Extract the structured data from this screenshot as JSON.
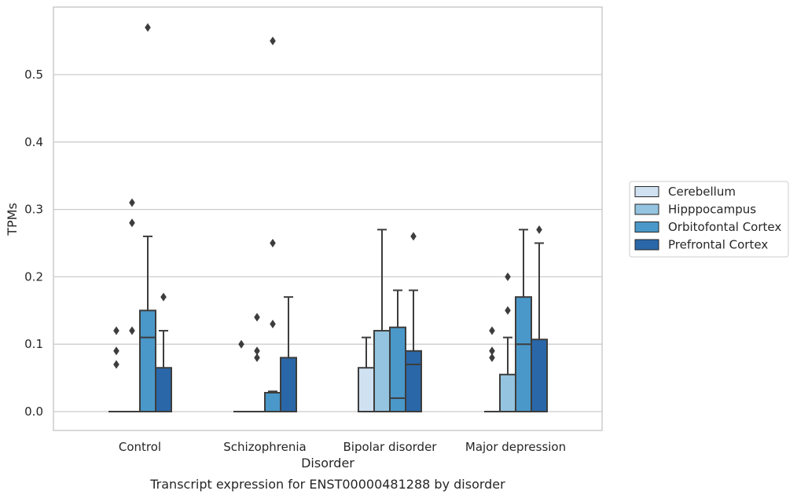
{
  "chart_data": {
    "type": "box",
    "title": "",
    "caption": "Transcript expression for ENST00000481288 by disorder",
    "xlabel": "Disorder",
    "ylabel": "TPMs",
    "ylim": [
      -0.028,
      0.6
    ],
    "yticks": [
      0.0,
      0.1,
      0.2,
      0.3,
      0.4,
      0.5
    ],
    "ytick_labels": [
      "0.0",
      "0.1",
      "0.2",
      "0.3",
      "0.4",
      "0.5"
    ],
    "grid": "horizontal",
    "legend_position": "right",
    "categories": [
      "Control",
      "Schizophrenia",
      "Bipolar disorder",
      "Major depression"
    ],
    "series": [
      {
        "name": "Cerebellum",
        "color": "#d0e1f2",
        "boxes": [
          {
            "q1": 0.0,
            "median": 0.0,
            "q3": 0.0,
            "whisker_low": 0.0,
            "whisker_high": 0.0,
            "outliers": [
              0.12,
              0.09,
              0.07
            ]
          },
          {
            "q1": 0.0,
            "median": 0.0,
            "q3": 0.0,
            "whisker_low": 0.0,
            "whisker_high": 0.0,
            "outliers": [
              0.1
            ]
          },
          {
            "q1": 0.0,
            "median": 0.0,
            "q3": 0.065,
            "whisker_low": 0.0,
            "whisker_high": 0.11,
            "outliers": []
          },
          {
            "q1": 0.0,
            "median": 0.0,
            "q3": 0.0,
            "whisker_low": 0.0,
            "whisker_high": 0.0,
            "outliers": [
              0.12,
              0.09,
              0.08
            ]
          }
        ]
      },
      {
        "name": "Hipppocampus",
        "color": "#94c4df",
        "boxes": [
          {
            "q1": 0.0,
            "median": 0.0,
            "q3": 0.0,
            "whisker_low": 0.0,
            "whisker_high": 0.0,
            "outliers": [
              0.31,
              0.28,
              0.12
            ]
          },
          {
            "q1": 0.0,
            "median": 0.0,
            "q3": 0.0,
            "whisker_low": 0.0,
            "whisker_high": 0.0,
            "outliers": [
              0.14,
              0.09,
              0.08
            ]
          },
          {
            "q1": 0.0,
            "median": 0.0,
            "q3": 0.12,
            "whisker_low": 0.0,
            "whisker_high": 0.27,
            "outliers": []
          },
          {
            "q1": 0.0,
            "median": 0.0,
            "q3": 0.055,
            "whisker_low": 0.0,
            "whisker_high": 0.11,
            "outliers": [
              0.2,
              0.15
            ]
          }
        ]
      },
      {
        "name": "Orbitofontal Cortex",
        "color": "#4a98c9",
        "boxes": [
          {
            "q1": 0.0,
            "median": 0.11,
            "q3": 0.15,
            "whisker_low": 0.0,
            "whisker_high": 0.26,
            "outliers": [
              0.57
            ]
          },
          {
            "q1": 0.0,
            "median": 0.0,
            "q3": 0.028,
            "whisker_low": 0.0,
            "whisker_high": 0.03,
            "outliers": [
              0.55,
              0.25,
              0.13
            ]
          },
          {
            "q1": 0.0,
            "median": 0.02,
            "q3": 0.125,
            "whisker_low": 0.0,
            "whisker_high": 0.18,
            "outliers": []
          },
          {
            "q1": 0.0,
            "median": 0.1,
            "q3": 0.17,
            "whisker_low": 0.0,
            "whisker_high": 0.27,
            "outliers": []
          }
        ]
      },
      {
        "name": "Prefrontal Cortex",
        "color": "#2967a8",
        "boxes": [
          {
            "q1": 0.0,
            "median": 0.0,
            "q3": 0.065,
            "whisker_low": 0.0,
            "whisker_high": 0.12,
            "outliers": [
              0.17
            ]
          },
          {
            "q1": 0.0,
            "median": 0.0,
            "q3": 0.08,
            "whisker_low": 0.0,
            "whisker_high": 0.17,
            "outliers": []
          },
          {
            "q1": 0.0,
            "median": 0.07,
            "q3": 0.09,
            "whisker_low": 0.0,
            "whisker_high": 0.18,
            "outliers": [
              0.26
            ]
          },
          {
            "q1": 0.0,
            "median": 0.0,
            "q3": 0.107,
            "whisker_low": 0.0,
            "whisker_high": 0.25,
            "outliers": [
              0.27
            ]
          }
        ]
      }
    ]
  }
}
